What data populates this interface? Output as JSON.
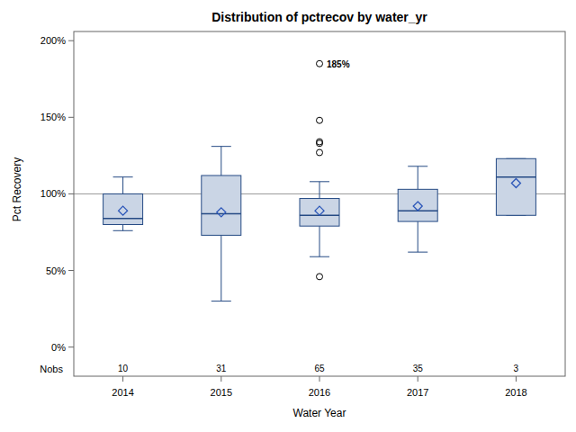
{
  "chart_data": {
    "type": "box",
    "title": "Distribution of pctrecov by water_yr",
    "x_label": "Water Year",
    "y_label": "Pct Recovery",
    "categories": [
      "2014",
      "2015",
      "2016",
      "2017",
      "2018"
    ],
    "min": [
      76,
      30,
      59,
      62,
      86
    ],
    "q1": [
      80,
      73,
      79,
      82,
      86
    ],
    "median": [
      84,
      87,
      86,
      89,
      111
    ],
    "q3": [
      100,
      112,
      97,
      103,
      123
    ],
    "max": [
      111,
      131,
      108,
      118,
      123
    ],
    "mean": [
      89,
      88,
      89,
      92,
      107
    ],
    "outliers": [
      [],
      [],
      [
        185,
        148,
        134,
        133,
        127,
        46
      ],
      [],
      []
    ],
    "nobs_label": "Nobs",
    "nobs": [
      10,
      31,
      65,
      35,
      3
    ],
    "reference_line": 100,
    "annotations": [
      {
        "text": "185%",
        "x": "2016",
        "y": 185
      }
    ],
    "color": "#cad5e5",
    "grid": false,
    "ylim": [
      -19,
      206
    ],
    "yticks": [
      {
        "value": 0,
        "label": "0%"
      },
      {
        "value": 50,
        "label": "50%"
      },
      {
        "value": 100,
        "label": "100%"
      },
      {
        "value": 150,
        "label": "150%"
      },
      {
        "value": 200,
        "label": "200%"
      }
    ]
  }
}
